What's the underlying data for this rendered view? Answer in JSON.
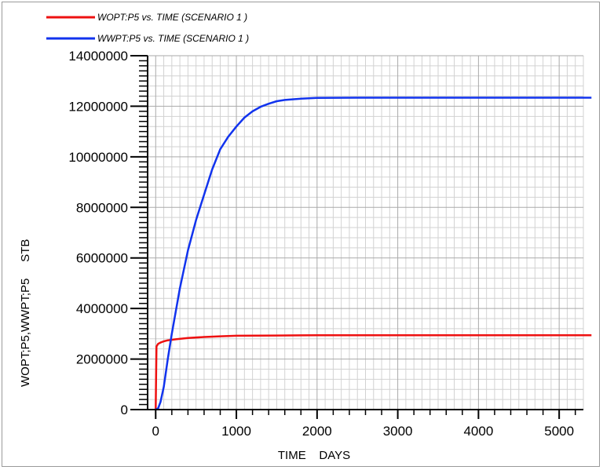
{
  "chart_data": {
    "type": "line",
    "legend": {
      "placement": "top-left",
      "entries": [
        "WOPT:P5  vs.  TIME (SCENARIO 1 )",
        "WWPT:P5  vs.  TIME (SCENARIO 1 )"
      ]
    },
    "xlabel": "TIME    DAYS",
    "ylabel": "WOPT;P5,WWPT;P5     STB",
    "xlim": [
      -100,
      5300
    ],
    "ylim": [
      0,
      14000000
    ],
    "xticks": [
      0,
      1000,
      2000,
      3000,
      4000,
      5000
    ],
    "xtick_labels": [
      "0",
      "1000",
      "2000",
      "3000",
      "4000",
      "5000"
    ],
    "yticks": [
      0,
      2000000,
      4000000,
      6000000,
      8000000,
      10000000,
      12000000,
      14000000
    ],
    "ytick_labels": [
      "0",
      "2000000",
      "4000000",
      "6000000",
      "8000000",
      "10000000",
      "12000000",
      "14000000"
    ],
    "grid": true,
    "series": [
      {
        "name": "WOPT:P5  vs.  TIME (SCENARIO 1 )",
        "color": "#ee1111",
        "x": [
          0,
          5,
          10,
          30,
          60,
          100,
          150,
          250,
          400,
          600,
          800,
          1000,
          1500,
          2000,
          3000,
          4000,
          5000,
          5400
        ],
        "y": [
          0,
          1300000,
          2500000,
          2600000,
          2650000,
          2700000,
          2740000,
          2780000,
          2830000,
          2870000,
          2900000,
          2920000,
          2930000,
          2940000,
          2940000,
          2940000,
          2940000,
          2940000
        ]
      },
      {
        "name": "WWPT:P5  vs.  TIME (SCENARIO 1 )",
        "color": "#1133ee",
        "x": [
          0,
          30,
          60,
          100,
          150,
          200,
          300,
          400,
          500,
          600,
          700,
          800,
          900,
          1000,
          1100,
          1200,
          1300,
          1400,
          1500,
          1600,
          1800,
          2000,
          2500,
          3000,
          4000,
          5000,
          5400
        ],
        "y": [
          0,
          50000,
          300000,
          900000,
          2000000,
          3000000,
          4800000,
          6300000,
          7500000,
          8500000,
          9500000,
          10300000,
          10800000,
          11200000,
          11550000,
          11800000,
          11980000,
          12100000,
          12200000,
          12250000,
          12300000,
          12330000,
          12340000,
          12340000,
          12340000,
          12340000,
          12340000
        ]
      }
    ]
  }
}
